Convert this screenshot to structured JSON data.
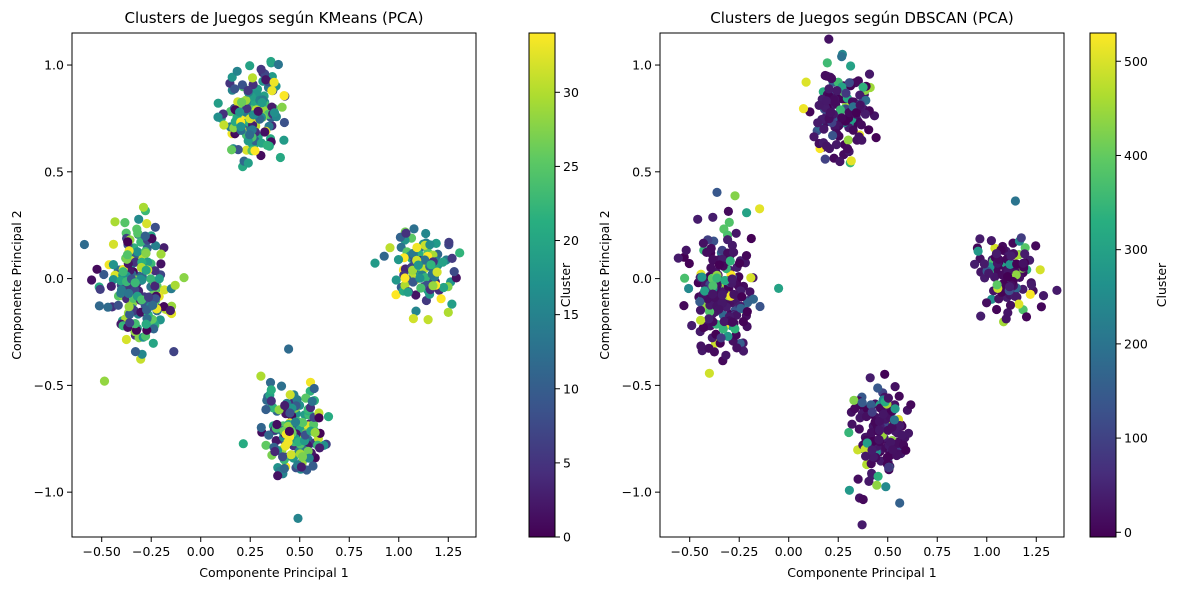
{
  "figure": {
    "background": "#ffffff"
  },
  "chart_data": [
    {
      "type": "scatter",
      "title": "Clusters de Juegos según KMeans (PCA)",
      "xlabel": "Componente Principal 1",
      "ylabel": "Componente Principal 2",
      "xlim": [
        -0.65,
        1.39
      ],
      "ylim": [
        -1.21,
        1.15
      ],
      "xticks": [
        -0.5,
        -0.25,
        0.0,
        0.25,
        0.5,
        0.75,
        1.0,
        1.25
      ],
      "xtick_labels": [
        "−0.50",
        "−0.25",
        "0.00",
        "0.25",
        "0.50",
        "0.75",
        "1.00",
        "1.25"
      ],
      "yticks": [
        -1.0,
        -0.5,
        0.0,
        0.5,
        1.0
      ],
      "ytick_labels": [
        "−1.0",
        "−0.5",
        "0.0",
        "0.5",
        "1.0"
      ],
      "grid": false,
      "colormap": "viridis",
      "colorbar": {
        "label": "Cluster",
        "range": [
          0,
          34
        ],
        "ticks": [
          0,
          5,
          10,
          15,
          20,
          25,
          30
        ],
        "tick_labels": [
          "0",
          "5",
          "10",
          "15",
          "20",
          "25",
          "30"
        ]
      },
      "clusters": [
        {
          "center": [
            -0.32,
            -0.05
          ],
          "spread": [
            0.085,
            0.15
          ],
          "points": 190
        },
        {
          "center": [
            0.27,
            0.78
          ],
          "spread": [
            0.07,
            0.11
          ],
          "points": 145
        },
        {
          "center": [
            1.12,
            0.04
          ],
          "spread": [
            0.08,
            0.09
          ],
          "points": 120
        },
        {
          "center": [
            0.47,
            -0.72
          ],
          "spread": [
            0.08,
            0.12
          ],
          "points": 150
        }
      ]
    },
    {
      "type": "scatter",
      "title": "Clusters de Juegos según DBSCAN (PCA)",
      "xlabel": "Componente Principal 1",
      "ylabel": "Componente Principal 2",
      "xlim": [
        -0.65,
        1.39
      ],
      "ylim": [
        -1.21,
        1.15
      ],
      "xticks": [
        -0.5,
        -0.25,
        0.0,
        0.25,
        0.5,
        0.75,
        1.0,
        1.25
      ],
      "xtick_labels": [
        "−0.50",
        "−0.25",
        "0.00",
        "0.25",
        "0.50",
        "0.75",
        "1.00",
        "1.25"
      ],
      "yticks": [
        -1.0,
        -0.5,
        0.0,
        0.5,
        1.0
      ],
      "ytick_labels": [
        "−1.0",
        "−0.5",
        "0.0",
        "0.5",
        "1.0"
      ],
      "grid": false,
      "colormap": "viridis",
      "colorbar": {
        "label": "Cluster",
        "range": [
          -5,
          530
        ],
        "ticks": [
          0,
          100,
          200,
          300,
          400,
          500
        ],
        "tick_labels": [
          "0",
          "100",
          "200",
          "300",
          "400",
          "500"
        ]
      },
      "clusters": [
        {
          "center": [
            -0.32,
            -0.05
          ],
          "spread": [
            0.085,
            0.15
          ],
          "points": 190
        },
        {
          "center": [
            0.27,
            0.78
          ],
          "spread": [
            0.07,
            0.11
          ],
          "points": 145
        },
        {
          "center": [
            1.12,
            0.04
          ],
          "spread": [
            0.08,
            0.09
          ],
          "points": 120
        },
        {
          "center": [
            0.47,
            -0.72
          ],
          "spread": [
            0.08,
            0.12
          ],
          "points": 150
        }
      ]
    }
  ]
}
